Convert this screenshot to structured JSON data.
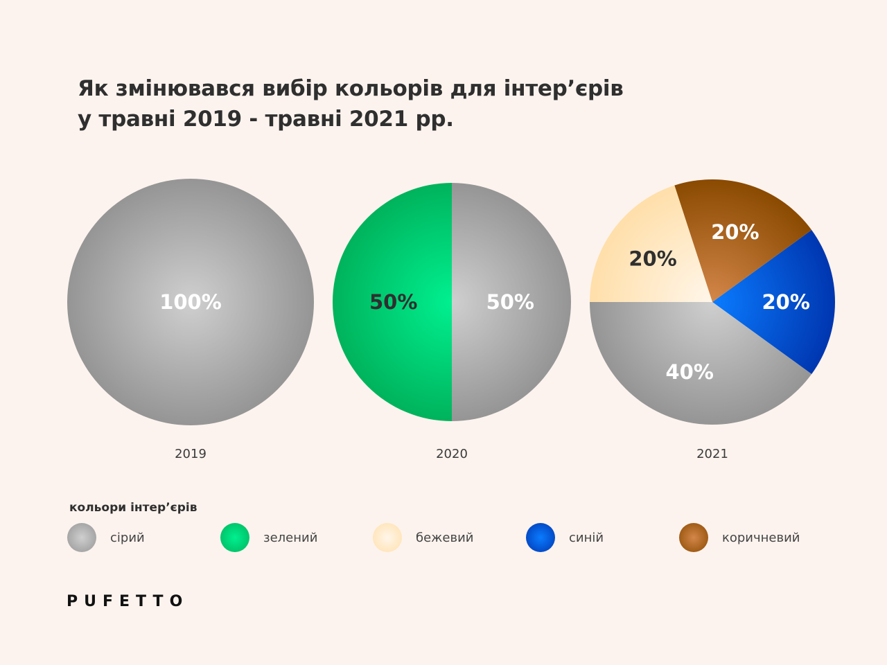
{
  "title": {
    "line1": "Як змінювався вибір кольорів для інтер’єрів",
    "line2": "у травні 2019 - травні 2021 рр."
  },
  "colors": {
    "сірий": {
      "light": "#cfcfcf",
      "dark": "#959595",
      "text": "#ffffff"
    },
    "зелений": {
      "light": "#00f090",
      "dark": "#00b35c",
      "text": "#2f2f2f"
    },
    "бежевий": {
      "light": "#fff6ea",
      "dark": "#ffdfaa",
      "text": "#2f2f2f"
    },
    "синій": {
      "light": "#0a7cff",
      "dark": "#0036b0",
      "text": "#ffffff"
    },
    "коричневий": {
      "light": "#d4874a",
      "dark": "#8a4a00",
      "text": "#ffffff"
    }
  },
  "chart_data": [
    {
      "type": "pie",
      "xlabel": "2019",
      "slices": [
        {
          "category": "сірий",
          "value": 100,
          "label": "100%"
        }
      ]
    },
    {
      "type": "pie",
      "xlabel": "2020",
      "slices": [
        {
          "category": "зелений",
          "value": 50,
          "label": "50%"
        },
        {
          "category": "сірий",
          "value": 50,
          "label": "50%"
        }
      ]
    },
    {
      "type": "pie",
      "xlabel": "2021",
      "slices": [
        {
          "category": "синій",
          "value": 20,
          "label": "20%"
        },
        {
          "category": "коричневий",
          "value": 20,
          "label": "20%"
        },
        {
          "category": "бежевий",
          "value": 20,
          "label": "20%"
        },
        {
          "category": "сірий",
          "value": 40,
          "label": "40%"
        }
      ]
    }
  ],
  "legend": {
    "title": "кольори інтер’єрів",
    "items": [
      "сірий",
      "зелений",
      "бежевий",
      "синій",
      "коричневий"
    ]
  },
  "brand": "PUFETTO"
}
